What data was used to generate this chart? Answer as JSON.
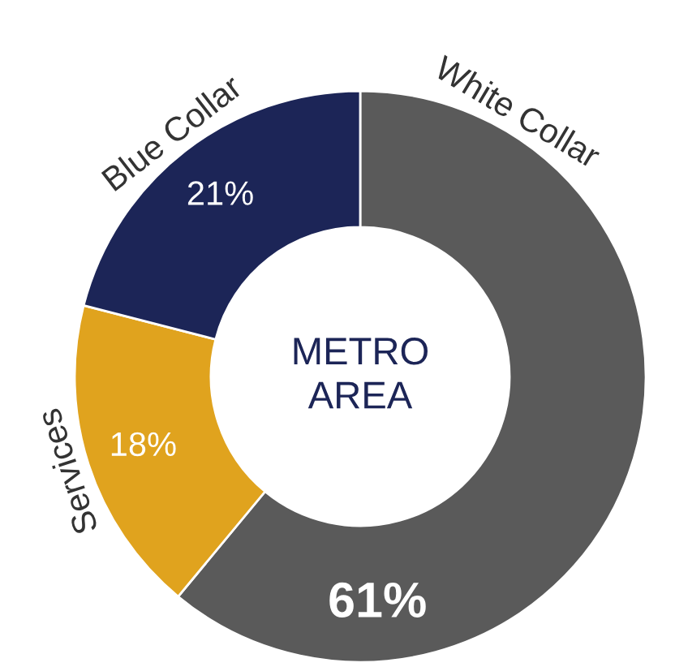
{
  "chart_data": {
    "type": "donut",
    "title": "METRO\nAREA",
    "categories": [
      "White Collar",
      "Services",
      "Blue Collar"
    ],
    "values": [
      61,
      18,
      21
    ],
    "colors": [
      "#5a5a5a",
      "#e0a31e",
      "#1c2557"
    ],
    "value_labels": [
      "61%",
      "18%",
      "21%"
    ],
    "legend": false
  }
}
